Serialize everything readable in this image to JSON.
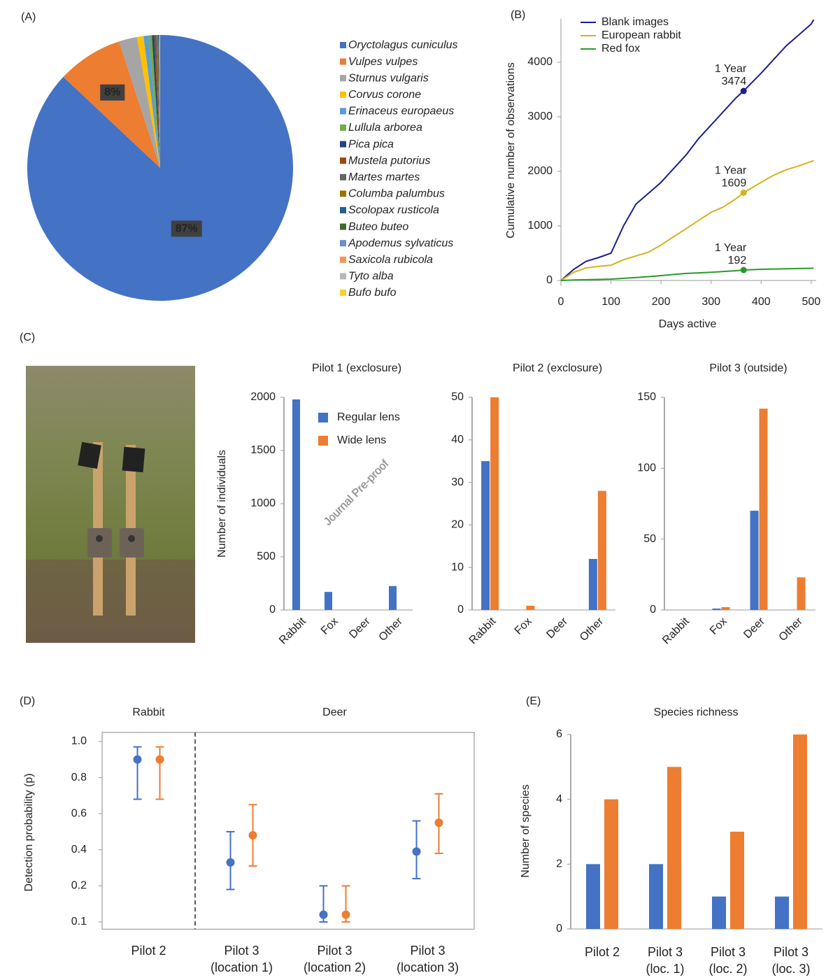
{
  "watermark": "Journal Pre-proof",
  "chart_data": [
    {
      "type": "pie",
      "panel": "(A)",
      "categories": [
        "Oryctolagus cuniculus",
        "Vulpes vulpes",
        "Sturnus vulgaris",
        "Corvus corone",
        "Erinaceus europaeus",
        "Lullula arborea",
        "Pica pica",
        "Mustela putorius",
        "Martes martes",
        "Columba palumbus",
        "Scolopax rusticola",
        "Buteo buteo",
        "Apodemus sylvaticus",
        "Saxicola rubicola",
        "Tyto alba",
        "Bufo bufo"
      ],
      "values": [
        87,
        8,
        2.2,
        0.8,
        0.6,
        0.4,
        0.3,
        0.2,
        0.15,
        0.1,
        0.08,
        0.05,
        0.04,
        0.03,
        0.03,
        0.02
      ],
      "value_labels": [
        "87%",
        "8%",
        null,
        null,
        null,
        null,
        null,
        null,
        null,
        null,
        null,
        null,
        null,
        null,
        null,
        null
      ],
      "colors": [
        "#4472c4",
        "#ed7d31",
        "#a5a5a5",
        "#ffc000",
        "#5b9bd5",
        "#70ad47",
        "#264478",
        "#9e480e",
        "#636363",
        "#997300",
        "#255e91",
        "#43682b",
        "#698ed0",
        "#f1975a",
        "#b7b7b7",
        "#ffcd33"
      ],
      "legend": "right"
    },
    {
      "type": "line",
      "panel": "(B)",
      "xlabel": "Days active",
      "ylabel": "Cumulative number of observations",
      "x": [
        0,
        25,
        50,
        75,
        100,
        125,
        150,
        175,
        200,
        225,
        250,
        275,
        300,
        325,
        350,
        365,
        400,
        425,
        450,
        475,
        500,
        505
      ],
      "series": [
        {
          "name": "Blank images",
          "color": "#1a1f8c",
          "values": [
            0,
            200,
            350,
            420,
            500,
            1000,
            1400,
            1600,
            1800,
            2050,
            2300,
            2600,
            2850,
            3100,
            3350,
            3474,
            3800,
            4050,
            4300,
            4500,
            4700,
            4780
          ]
        },
        {
          "name": "European rabbit",
          "color": "#d4b21c",
          "values": [
            0,
            150,
            230,
            260,
            280,
            380,
            450,
            520,
            650,
            800,
            950,
            1100,
            1250,
            1350,
            1500,
            1609,
            1800,
            1930,
            2030,
            2100,
            2180,
            2200
          ]
        },
        {
          "name": "Red fox",
          "color": "#2a9a2a",
          "values": [
            0,
            10,
            15,
            20,
            25,
            40,
            55,
            70,
            90,
            110,
            130,
            140,
            150,
            165,
            180,
            192,
            205,
            210,
            215,
            220,
            225,
            225
          ]
        }
      ],
      "annotations": [
        {
          "x": 365,
          "value": 3474,
          "label": "1 Year",
          "color": "#1a1f8c"
        },
        {
          "x": 365,
          "value": 1609,
          "label": "1 Year",
          "color": "#d4b21c"
        },
        {
          "x": 365,
          "value": 192,
          "label": "1 Year",
          "color": "#2a9a2a"
        }
      ],
      "xlim": [
        0,
        510
      ],
      "ylim": [
        -100,
        4800
      ],
      "xticks": [
        0,
        100,
        200,
        300,
        400,
        500
      ],
      "yticks": [
        0,
        1000,
        2000,
        3000,
        4000
      ],
      "legend": "top-left"
    },
    {
      "type": "bar",
      "panel": "(C)",
      "title": "Pilot 1 (exclosure)",
      "ylabel": "Number of individuals",
      "categories": [
        "Rabbit",
        "Fox",
        "Deer",
        "Other"
      ],
      "series": [
        {
          "name": "Regular lens",
          "color": "#4472c4",
          "values": [
            1980,
            170,
            0,
            225
          ]
        },
        {
          "name": "Wide lens",
          "color": "#ed7d31",
          "values": [
            0,
            0,
            0,
            0
          ]
        }
      ],
      "ylim": [
        0,
        2000
      ],
      "yticks": [
        0,
        500,
        1000,
        1500,
        2000
      ],
      "legend": "top-right"
    },
    {
      "type": "bar",
      "title": "Pilot 2 (exclosure)",
      "categories": [
        "Rabbit",
        "Fox",
        "Deer",
        "Other"
      ],
      "series": [
        {
          "color": "#4472c4",
          "values": [
            35,
            0,
            0,
            12
          ]
        },
        {
          "color": "#ed7d31",
          "values": [
            50,
            1,
            0,
            28
          ]
        }
      ],
      "ylim": [
        0,
        50
      ],
      "yticks": [
        0,
        10,
        20,
        30,
        40,
        50
      ]
    },
    {
      "type": "bar",
      "title": "Pilot 3 (outside)",
      "categories": [
        "Rabbit",
        "Fox",
        "Deer",
        "Other"
      ],
      "series": [
        {
          "color": "#4472c4",
          "values": [
            0,
            1,
            70,
            0
          ]
        },
        {
          "color": "#ed7d31",
          "values": [
            0,
            2,
            142,
            23
          ]
        }
      ],
      "ylim": [
        0,
        150
      ],
      "yticks": [
        0,
        50,
        100,
        150
      ]
    },
    {
      "type": "errorbar",
      "panel": "(D)",
      "ylabel": "Detection probability (p)",
      "group_labels": [
        "Rabbit",
        "Deer"
      ],
      "categories": [
        "Pilot 2",
        "Pilot 3\n(location 1)",
        "Pilot 3\n(location 2)",
        "Pilot 3\n(location 3)"
      ],
      "series": [
        {
          "color": "#4472c4",
          "values": [
            0.9,
            0.33,
            0.12,
            0.39
          ],
          "lower": [
            0.68,
            0.19,
            0.1,
            0.24
          ],
          "upper": [
            0.97,
            0.5,
            0.2,
            0.56
          ]
        },
        {
          "color": "#ed7d31",
          "values": [
            0.9,
            0.48,
            0.12,
            0.55
          ],
          "lower": [
            0.68,
            0.31,
            0.1,
            0.38
          ],
          "upper": [
            0.97,
            0.65,
            0.2,
            0.71
          ]
        }
      ],
      "ylim": [
        0.08,
        1.05
      ],
      "yticks": [
        {
          "value": 1,
          "label": "1.0"
        },
        0.8,
        0.6,
        0.4,
        0.2,
        0.1
      ],
      "yscale": "even-ticks"
    },
    {
      "type": "bar",
      "panel": "(E)",
      "title": "Species richness",
      "ylabel": "Number of species",
      "categories": [
        "Pilot 2",
        "Pilot 3\n(loc. 1)",
        "Pilot 3\n(loc. 2)",
        "Pilot 3\n(loc. 3)"
      ],
      "series": [
        {
          "color": "#4472c4",
          "values": [
            2,
            2,
            1,
            1
          ]
        },
        {
          "color": "#ed7d31",
          "values": [
            4,
            5,
            3,
            6
          ]
        }
      ],
      "ylim": [
        0,
        6
      ],
      "yticks": [
        0,
        2,
        4,
        6
      ]
    }
  ]
}
